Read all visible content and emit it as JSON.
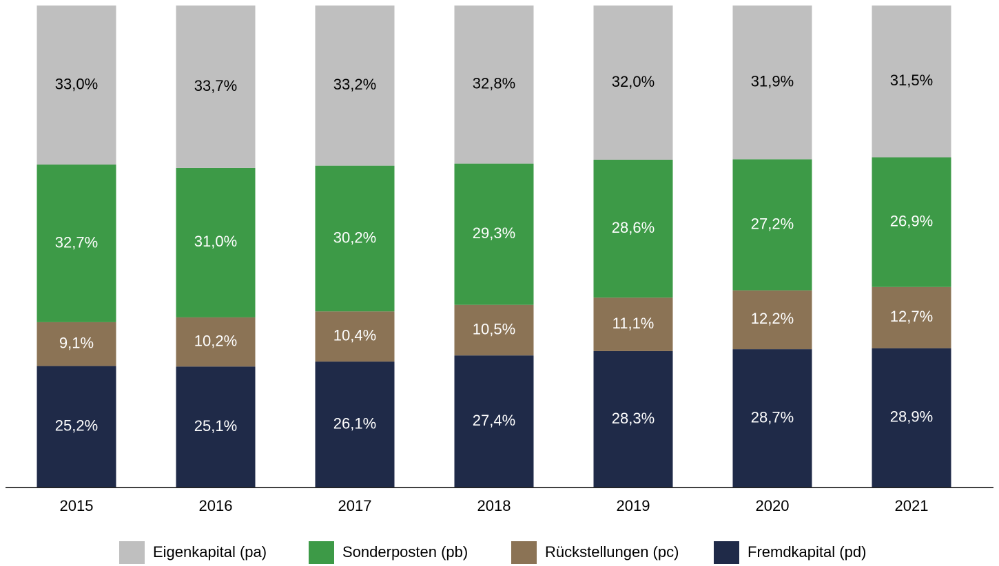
{
  "chart_data": {
    "type": "stacked_bar",
    "categories": [
      "2015",
      "2016",
      "2017",
      "2018",
      "2019",
      "2020",
      "2021"
    ],
    "series": [
      {
        "name": "Eigenkapital (pa)",
        "color": "#bfbfbf",
        "values": [
          33.0,
          33.7,
          33.2,
          32.8,
          32.0,
          31.9,
          31.5
        ],
        "value_labels": [
          "33,0%",
          "33,7%",
          "33,2%",
          "32,8%",
          "32,0%",
          "31,9%",
          "31,5%"
        ]
      },
      {
        "name": "Sonderposten (pb)",
        "color": "#3d9a47",
        "values": [
          32.7,
          31.0,
          30.2,
          29.3,
          28.6,
          27.2,
          26.9
        ],
        "value_labels": [
          "32,7%",
          "31,0%",
          "30,2%",
          "29,3%",
          "28,6%",
          "27,2%",
          "26,9%"
        ]
      },
      {
        "name": "Rückstellungen (pc)",
        "color": "#8b7355",
        "values": [
          9.1,
          10.2,
          10.4,
          10.5,
          11.1,
          12.2,
          12.7
        ],
        "value_labels": [
          "9,1%",
          "10,2%",
          "10,4%",
          "10,5%",
          "11,1%",
          "12,2%",
          "12,7%"
        ]
      },
      {
        "name": "Fremdkapital (pd)",
        "color": "#1f2a48",
        "values": [
          25.2,
          25.1,
          26.1,
          27.4,
          28.3,
          28.7,
          28.9
        ],
        "value_labels": [
          "25,2%",
          "25,1%",
          "26,1%",
          "27,4%",
          "28,3%",
          "28,7%",
          "28,9%"
        ]
      }
    ],
    "legend": "bottom"
  }
}
